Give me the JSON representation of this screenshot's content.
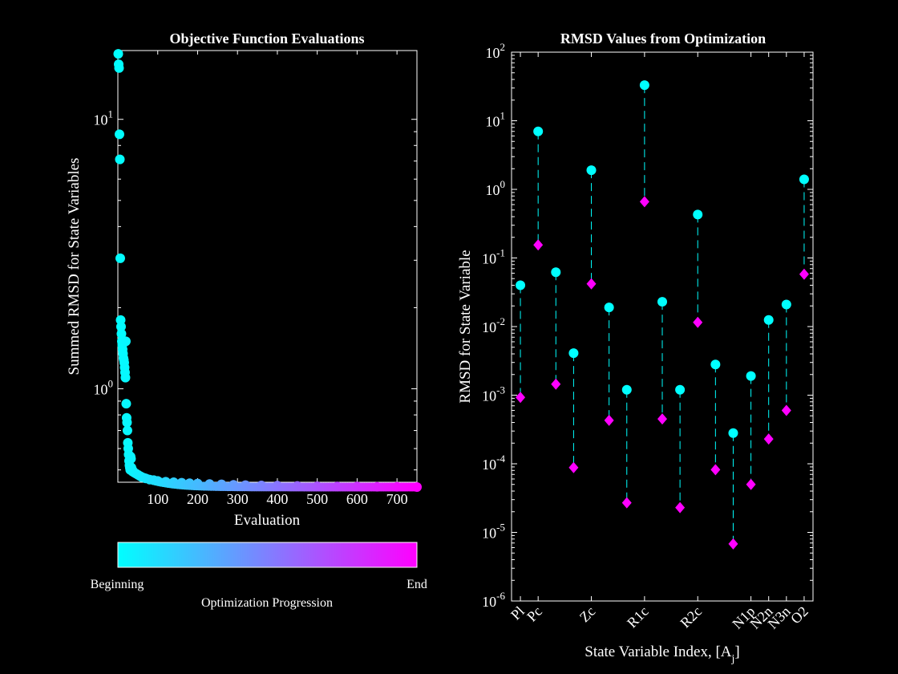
{
  "chart_data": [
    {
      "type": "scatter",
      "title": "Objective Function Evaluations",
      "xlabel": "Evaluation",
      "ylabel": "Summed RMSD for State Variables",
      "xlim": [
        0,
        750
      ],
      "ylim": [
        0.45,
        18
      ],
      "yscale": "log",
      "xticks": [
        100,
        200,
        300,
        400,
        500,
        600,
        700
      ],
      "yticks": [
        {
          "value": 1,
          "mantissa": "10",
          "exp": "0"
        },
        {
          "value": 10,
          "mantissa": "10",
          "exp": "1"
        }
      ],
      "grid": false,
      "colormap": [
        "#00ffff",
        "#ff00ff"
      ],
      "x": [
        1,
        2,
        3,
        4,
        5,
        6,
        7,
        8,
        9,
        10,
        11,
        12,
        13,
        14,
        15,
        16,
        17,
        18,
        19,
        20,
        21,
        22,
        23,
        24,
        25,
        26,
        27,
        28,
        29,
        30,
        31,
        32,
        33,
        34,
        35,
        36,
        38,
        40,
        45,
        50,
        55,
        60,
        70,
        80,
        90,
        100,
        120,
        140,
        160,
        180,
        200,
        230,
        260,
        290,
        320,
        360,
        400,
        450,
        500,
        550,
        600,
        650,
        700,
        750
      ],
      "y": [
        17.5,
        16.0,
        15.5,
        8.8,
        7.1,
        3.05,
        1.8,
        1.7,
        1.6,
        1.5,
        1.45,
        1.4,
        1.35,
        1.3,
        1.28,
        1.25,
        1.2,
        1.15,
        1.1,
        1.5,
        0.88,
        0.78,
        0.75,
        0.7,
        0.63,
        0.6,
        0.57,
        0.54,
        0.52,
        0.51,
        0.5,
        0.56,
        0.55,
        0.51,
        0.5,
        0.5,
        0.495,
        0.49,
        0.485,
        0.48,
        0.475,
        0.47,
        0.465,
        0.46,
        0.458,
        0.455,
        0.452,
        0.45,
        0.448,
        0.446,
        0.445,
        0.443,
        0.442,
        0.44,
        0.439,
        0.438,
        0.437,
        0.436,
        0.435,
        0.434,
        0.434,
        0.433,
        0.433,
        0.432
      ]
    },
    {
      "type": "scatter",
      "title": "RMSD Values from Optimization",
      "xlabel_main": "State Variable Index, [A",
      "xlabel_sub": "j",
      "xlabel_close": "]",
      "ylabel": "RMSD for State Variable",
      "yscale": "log",
      "ylim_exp": [
        -6,
        2
      ],
      "xlim": [
        0.5,
        17.5
      ],
      "grid": false,
      "yticks": [
        {
          "exp": 2,
          "label": "2"
        },
        {
          "exp": 1,
          "label": "1"
        },
        {
          "exp": 0,
          "label": "0"
        },
        {
          "exp": -1,
          "label": "-1"
        },
        {
          "exp": -2,
          "label": "-2"
        },
        {
          "exp": -3,
          "label": "-3"
        },
        {
          "exp": -4,
          "label": "-4"
        },
        {
          "exp": -5,
          "label": "-5"
        },
        {
          "exp": -6,
          "label": "-6"
        }
      ],
      "xticks": [
        {
          "x": 1,
          "label": "Pl"
        },
        {
          "x": 2,
          "label": "Pc"
        },
        {
          "x": 5,
          "label": "Zc"
        },
        {
          "x": 8,
          "label": "R1c"
        },
        {
          "x": 11,
          "label": "R2c"
        },
        {
          "x": 14,
          "label": "N1p"
        },
        {
          "x": 15,
          "label": "N2n"
        },
        {
          "x": 16,
          "label": "N3n"
        },
        {
          "x": 17,
          "label": "O2"
        }
      ],
      "series": [
        {
          "marker": "circle",
          "color": "#00ffff",
          "values": [
            0.04,
            7.0,
            0.062,
            0.0041,
            1.9,
            0.019,
            0.0012,
            33.0,
            0.023,
            0.0012,
            0.43,
            0.0028,
            0.00028,
            0.0019,
            0.0125,
            0.021,
            1.4
          ]
        },
        {
          "marker": "diamond",
          "color": "#ff00ff",
          "values": [
            0.00093,
            0.155,
            0.00145,
            8.8e-05,
            0.042,
            0.00043,
            2.7e-05,
            0.66,
            0.00045,
            2.3e-05,
            0.0115,
            8.2e-05,
            6.8e-06,
            5e-05,
            0.00023,
            0.0006,
            0.058
          ]
        }
      ]
    }
  ],
  "colorbar": {
    "left_label": "Beginning",
    "right_label": "End",
    "caption": "Optimization Progression"
  }
}
